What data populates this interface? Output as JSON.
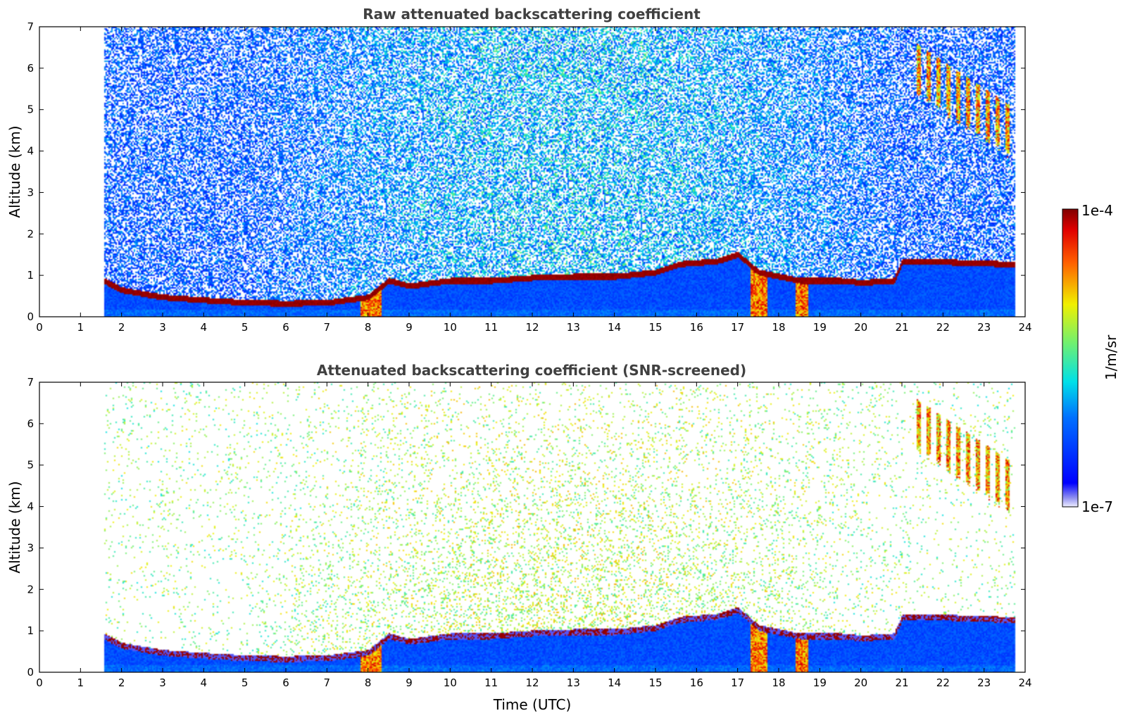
{
  "chart_data": [
    {
      "type": "heatmap",
      "title": "Raw attenuated backscattering coefficient",
      "xlabel": "",
      "ylabel": "Altitude (km)",
      "xlim": [
        0,
        24
      ],
      "ylim": [
        0,
        7
      ],
      "xticks": [
        "0",
        "1",
        "2",
        "3",
        "4",
        "5",
        "6",
        "7",
        "8",
        "9",
        "10",
        "11",
        "12",
        "13",
        "14",
        "15",
        "16",
        "17",
        "18",
        "19",
        "20",
        "21",
        "22",
        "23",
        "24"
      ],
      "yticks": [
        "0",
        "1",
        "2",
        "3",
        "4",
        "5",
        "6",
        "7"
      ],
      "data_start_hour": 1.55,
      "data_end_hour": 23.75,
      "boundary_layer_top_km": [
        {
          "t": 1.55,
          "z": 0.85
        },
        {
          "t": 2.0,
          "z": 0.62
        },
        {
          "t": 3.0,
          "z": 0.45
        },
        {
          "t": 4.0,
          "z": 0.38
        },
        {
          "t": 5.0,
          "z": 0.32
        },
        {
          "t": 6.0,
          "z": 0.3
        },
        {
          "t": 7.0,
          "z": 0.32
        },
        {
          "t": 8.0,
          "z": 0.45
        },
        {
          "t": 8.5,
          "z": 0.85
        },
        {
          "t": 9.0,
          "z": 0.72
        },
        {
          "t": 10.0,
          "z": 0.85
        },
        {
          "t": 11.0,
          "z": 0.85
        },
        {
          "t": 12.0,
          "z": 0.92
        },
        {
          "t": 13.0,
          "z": 0.95
        },
        {
          "t": 14.0,
          "z": 0.95
        },
        {
          "t": 15.0,
          "z": 1.05
        },
        {
          "t": 15.6,
          "z": 1.25
        },
        {
          "t": 16.5,
          "z": 1.32
        },
        {
          "t": 17.0,
          "z": 1.48
        },
        {
          "t": 17.5,
          "z": 1.05
        },
        {
          "t": 18.5,
          "z": 0.85
        },
        {
          "t": 19.5,
          "z": 0.85
        },
        {
          "t": 20.0,
          "z": 0.8
        },
        {
          "t": 20.8,
          "z": 0.85
        },
        {
          "t": 21.0,
          "z": 1.3
        },
        {
          "t": 22.0,
          "z": 1.3
        },
        {
          "t": 23.5,
          "z": 1.25
        }
      ],
      "cirrus_cloud": {
        "start_hour": 21.3,
        "end_hour": 23.6,
        "base_km": 4.2,
        "top_km": 6.6
      }
    },
    {
      "type": "heatmap",
      "title": "Attenuated backscattering coefficient (SNR-screened)",
      "xlabel": "Time (UTC)",
      "ylabel": "Altitude (km)",
      "xlim": [
        0,
        24
      ],
      "ylim": [
        0,
        7
      ],
      "xticks": [
        "0",
        "1",
        "2",
        "3",
        "4",
        "5",
        "6",
        "7",
        "8",
        "9",
        "10",
        "11",
        "12",
        "13",
        "14",
        "15",
        "16",
        "17",
        "18",
        "19",
        "20",
        "21",
        "22",
        "23",
        "24"
      ],
      "yticks": [
        "0",
        "1",
        "2",
        "3",
        "4",
        "5",
        "6",
        "7"
      ]
    }
  ],
  "colorbar": {
    "label": "1/m/sr",
    "max_label": "1e-4",
    "min_label": "1e-7",
    "scale": "log",
    "range": [
      1e-07,
      0.0001
    ]
  }
}
